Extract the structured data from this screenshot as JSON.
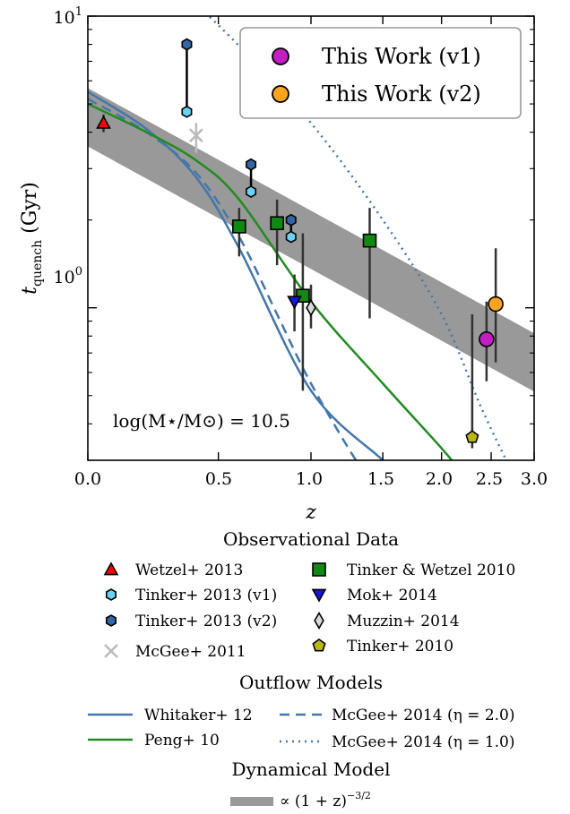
{
  "chart_data": {
    "type": "scatter",
    "title": "",
    "xlabel": "z",
    "ylabel": "t_quench (Gyr)",
    "x_scale": "log(1+z)",
    "y_scale": "log",
    "xlim": [
      0.0,
      3.0
    ],
    "ylim": [
      0.3,
      10
    ],
    "x_ticks": [
      "0.0",
      "0.5",
      "1.0",
      "1.5",
      "2.0",
      "2.5",
      "3.0"
    ],
    "y_ticks": [
      "10^0",
      "10^1"
    ],
    "annotation": "log(M⋆/M⊙) = 10.5",
    "legend_top_right": [
      {
        "label": "This Work (v1)",
        "color": "#c21ec2"
      },
      {
        "label": "This Work (v2)",
        "color": "#ffa41e"
      }
    ],
    "this_work": [
      {
        "name": "This Work (v1)",
        "x": 2.45,
        "y": 0.78,
        "lo": 0.56,
        "hi": 1.05
      },
      {
        "name": "This Work (v2)",
        "x": 2.55,
        "y": 1.03,
        "lo": 0.65,
        "hi": 1.6
      }
    ],
    "observational_title": "Observational Data",
    "observational": [
      {
        "name": "Wetzel+ 2013",
        "marker": "triangle",
        "color": "#ff0000",
        "points": [
          {
            "x": 0.05,
            "y": 4.3,
            "lo": 4.0,
            "hi": 4.6
          }
        ]
      },
      {
        "name": "Tinker+ 2013 (v1)",
        "marker": "hexagon",
        "color": "#6ad2f2",
        "points": [
          {
            "x": 0.36,
            "y": 4.7
          },
          {
            "x": 0.66,
            "y": 2.5
          },
          {
            "x": 0.88,
            "y": 1.75
          }
        ]
      },
      {
        "name": "Tinker+ 2013 (v2)",
        "marker": "hexagon",
        "color": "#3465a4",
        "points": [
          {
            "x": 0.36,
            "y": 8.0
          },
          {
            "x": 0.66,
            "y": 3.1
          },
          {
            "x": 0.88,
            "y": 2.0
          }
        ]
      },
      {
        "name": "McGee+ 2011",
        "marker": "x",
        "color": "#bbbbbb",
        "points": [
          {
            "x": 0.4,
            "y": 3.9,
            "lo": 3.4,
            "hi": 4.3
          }
        ]
      },
      {
        "name": "Tinker & Wetzel 2010",
        "marker": "square",
        "color": "#118811",
        "points": [
          {
            "x": 0.6,
            "y": 1.9,
            "lo": 1.5,
            "hi": 2.2
          },
          {
            "x": 0.8,
            "y": 1.95,
            "lo": 1.4,
            "hi": 2.35
          },
          {
            "x": 0.95,
            "y": 1.1,
            "lo": 0.52,
            "hi": 1.8
          },
          {
            "x": 1.4,
            "y": 1.7,
            "lo": 0.92,
            "hi": 2.2
          }
        ]
      },
      {
        "name": "Mok+ 2014",
        "marker": "triangle-down",
        "color": "#1515dd",
        "points": [
          {
            "x": 0.9,
            "y": 1.05,
            "lo": 0.83,
            "hi": 1.3
          }
        ]
      },
      {
        "name": "Muzzin+ 2014",
        "marker": "diamond",
        "color": "#d8d8d8",
        "points": [
          {
            "x": 1.0,
            "y": 1.0,
            "lo": 0.85,
            "hi": 1.2
          }
        ]
      },
      {
        "name": "Tinker+ 2010",
        "marker": "pentagon",
        "color": "#b8b814",
        "points": [
          {
            "x": 2.3,
            "y": 0.36,
            "lo": 0.33,
            "hi": 0.95
          }
        ]
      }
    ],
    "outflow_title": "Outflow Models",
    "outflow": [
      {
        "name": "Whitaker+ 12",
        "style": "solid",
        "color": "#4477aa",
        "points": [
          [
            0.0,
            5.5
          ],
          [
            0.2,
            4.1
          ],
          [
            0.4,
            2.8
          ],
          [
            0.6,
            1.6
          ],
          [
            1.0,
            0.52
          ],
          [
            1.5,
            0.3
          ],
          [
            1.7,
            0.25
          ]
        ]
      },
      {
        "name": "McGee+ 2014 (η = 2.0)",
        "style": "dashed",
        "color": "#4477aa",
        "points": [
          [
            0.0,
            5.2
          ],
          [
            0.2,
            4.0
          ],
          [
            0.4,
            2.9
          ],
          [
            0.6,
            1.75
          ],
          [
            0.8,
            0.95
          ],
          [
            1.0,
            0.55
          ],
          [
            1.3,
            0.3
          ],
          [
            1.4,
            0.27
          ]
        ]
      },
      {
        "name": "Peng+ 10",
        "style": "solid",
        "color": "#228b22",
        "points": [
          [
            0.0,
            5.0
          ],
          [
            0.2,
            4.0
          ],
          [
            0.4,
            3.2
          ],
          [
            0.6,
            2.35
          ],
          [
            1.0,
            1.05
          ],
          [
            1.5,
            0.55
          ],
          [
            2.0,
            0.33
          ],
          [
            2.2,
            0.27
          ]
        ]
      },
      {
        "name": "McGee+ 2014 (η = 1.0)",
        "style": "dotted",
        "color": "#4477aa",
        "points": [
          [
            0.4,
            11.0
          ],
          [
            0.6,
            7.9
          ],
          [
            1.0,
            4.3
          ],
          [
            1.5,
            2.0
          ],
          [
            2.0,
            0.95
          ],
          [
            2.4,
            0.45
          ],
          [
            2.8,
            0.25
          ]
        ]
      }
    ],
    "dynamical_title": "Dynamical Model",
    "dynamical": [
      {
        "name": "∝ (1 + z)^−3/2",
        "color": "#999999",
        "center": [
          [
            0.0,
            4.5
          ],
          [
            3.0,
            0.65
          ]
        ],
        "width_dex": 0.1
      }
    ]
  }
}
